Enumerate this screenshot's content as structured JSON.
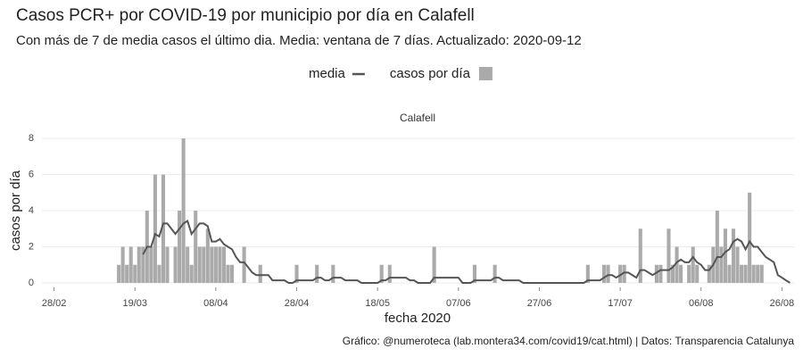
{
  "chart_data": {
    "type": "bar",
    "title": "Casos PCR+ por COVID-19 por municipio por día en Calafell",
    "subtitle": "Con más de 7 de media casos el último dia. Media: ventana de 7 días. Actualizado: 2020-09-12",
    "panel": "Calafell",
    "x_label": "fecha 2020",
    "y_label": "casos por día",
    "caption": "Gráfico: @numeroteca (lab.montera34.com/covid19/cat.html) | Datos: Transparencia Catalunya",
    "legend": "top",
    "grid": true,
    "xlim": [
      "25/02",
      "29/08"
    ],
    "xticks": [
      "28/02",
      "19/03",
      "08/04",
      "28/04",
      "18/05",
      "07/06",
      "27/06",
      "17/07",
      "06/08",
      "26/08"
    ],
    "ylim": [
      -0.25,
      8.5
    ],
    "yticks": [
      0,
      2,
      4,
      6,
      8
    ],
    "x": [
      "15/03",
      "16/03",
      "17/03",
      "18/03",
      "19/03",
      "20/03",
      "21/03",
      "22/03",
      "23/03",
      "24/03",
      "25/03",
      "26/03",
      "27/03",
      "28/03",
      "29/03",
      "30/03",
      "31/03",
      "01/04",
      "02/04",
      "03/04",
      "04/04",
      "05/04",
      "06/04",
      "07/04",
      "08/04",
      "09/04",
      "10/04",
      "11/04",
      "12/04",
      "13/04",
      "14/04",
      "15/04",
      "16/04",
      "17/04",
      "18/04",
      "19/04",
      "20/04",
      "21/04",
      "22/04",
      "23/04",
      "24/04",
      "25/04",
      "26/04",
      "27/04",
      "28/04",
      "29/04",
      "30/04",
      "01/05",
      "02/05",
      "03/05",
      "04/05",
      "05/05",
      "06/05",
      "07/05",
      "08/05",
      "09/05",
      "10/05",
      "11/05",
      "12/05",
      "13/05",
      "14/05",
      "15/05",
      "16/05",
      "17/05",
      "18/05",
      "19/05",
      "20/05",
      "21/05",
      "22/05",
      "23/05",
      "24/05",
      "25/05",
      "26/05",
      "27/05",
      "28/05",
      "29/05",
      "30/05",
      "31/05",
      "01/06",
      "02/06",
      "03/06",
      "04/06",
      "05/06",
      "06/06",
      "07/06",
      "08/06",
      "09/06",
      "10/06",
      "11/06",
      "12/06",
      "13/06",
      "14/06",
      "15/06",
      "16/06",
      "17/06",
      "18/06",
      "19/06",
      "20/06",
      "21/06",
      "22/06",
      "23/06",
      "24/06",
      "25/06",
      "26/06",
      "27/06",
      "28/06",
      "29/06",
      "30/06",
      "01/07",
      "02/07",
      "03/07",
      "04/07",
      "05/07",
      "06/07",
      "07/07",
      "08/07",
      "09/07",
      "10/07",
      "11/07",
      "12/07",
      "13/07",
      "14/07",
      "15/07",
      "16/07",
      "17/07",
      "18/07",
      "19/07",
      "20/07",
      "21/07",
      "22/07",
      "23/07",
      "24/07",
      "25/07",
      "26/07",
      "27/07",
      "28/07",
      "29/07",
      "30/07",
      "31/07",
      "01/08",
      "02/08",
      "03/08",
      "04/08",
      "05/08",
      "06/08",
      "07/08",
      "08/08",
      "09/08",
      "10/08",
      "11/08",
      "12/08",
      "13/08",
      "14/08",
      "15/08",
      "16/08",
      "17/08",
      "18/08",
      "19/08",
      "20/08",
      "21/08",
      "22/08",
      "23/08",
      "24/08",
      "25/08",
      "26/08",
      "27/08",
      "28/08"
    ],
    "series": [
      {
        "name": "media",
        "type": "line",
        "color": "#555555",
        "values": [
          null,
          null,
          null,
          null,
          null,
          null,
          1.57,
          2,
          2,
          2.71,
          2.57,
          3.29,
          3.29,
          3,
          2.71,
          3,
          3.29,
          3.43,
          2.71,
          3,
          3.29,
          3.29,
          3.14,
          2.29,
          2.29,
          2.43,
          2.14,
          2,
          1.86,
          1.43,
          1.14,
          1.14,
          0.86,
          0.57,
          0.43,
          0.43,
          0.43,
          0.43,
          0.14,
          0.14,
          0.14,
          0.14,
          0,
          0,
          0.14,
          0.14,
          0.14,
          0.14,
          0.14,
          0.29,
          0.29,
          0.14,
          0.14,
          0.29,
          0.29,
          0.29,
          0.14,
          0.14,
          0.14,
          0.14,
          0,
          0,
          0,
          0,
          0,
          0.14,
          0.14,
          0.29,
          0.29,
          0.29,
          0.29,
          0.29,
          0.14,
          0.14,
          0,
          0,
          0,
          0,
          0.29,
          0.29,
          0.29,
          0.29,
          0.29,
          0.29,
          0.29,
          0,
          0,
          0,
          0.14,
          0.14,
          0.14,
          0.14,
          0.14,
          0.29,
          0.29,
          0.14,
          0.14,
          0.14,
          0.14,
          0.14,
          0,
          0,
          0,
          0,
          0,
          0,
          0,
          0,
          0,
          0,
          0,
          0,
          0,
          0,
          0,
          0,
          0.14,
          0.14,
          0.14,
          0.14,
          0.29,
          0.43,
          0.43,
          0.29,
          0.43,
          0.57,
          0.57,
          0.43,
          0.29,
          0.71,
          0.71,
          0.57,
          0.43,
          0.57,
          0.71,
          0.71,
          0.71,
          0.86,
          1.14,
          1.29,
          1.14,
          1.14,
          1.43,
          1.14,
          1,
          0.71,
          0.71,
          1,
          1.43,
          1.43,
          1.71,
          1.86,
          2.29,
          2.43,
          2.29,
          1.86,
          2.29,
          2,
          2,
          1.71,
          1.43,
          1.29,
          1.14,
          0.43,
          0.29,
          0.14,
          0
        ]
      },
      {
        "name": "casos por día",
        "type": "bar",
        "color": "#aaaaaa",
        "values": [
          1,
          2,
          1,
          2,
          1,
          2,
          2,
          4,
          2,
          6,
          1,
          6,
          2,
          0,
          2,
          4,
          8,
          2,
          1,
          4,
          2,
          2,
          3,
          2,
          2,
          2,
          2,
          1,
          1,
          0,
          0,
          2,
          0,
          0,
          0,
          1,
          0,
          0,
          0,
          0,
          0,
          0,
          0,
          0,
          1,
          0,
          0,
          0,
          0,
          1,
          0,
          0,
          0,
          1,
          0,
          0,
          0,
          0,
          0,
          0,
          0,
          0,
          0,
          0,
          0,
          1,
          0,
          1,
          0,
          0,
          0,
          0,
          0,
          0,
          0,
          0,
          0,
          0,
          2,
          0,
          0,
          0,
          0,
          0,
          0,
          0,
          0,
          0,
          1,
          0,
          0,
          0,
          0,
          1,
          0,
          0,
          0,
          0,
          0,
          0,
          0,
          0,
          0,
          0,
          0,
          0,
          0,
          0,
          0,
          0,
          0,
          0,
          0,
          0,
          0,
          0,
          1,
          0,
          0,
          0,
          1,
          1,
          0,
          0,
          1,
          1,
          0,
          0,
          0,
          3,
          0,
          0,
          0,
          1,
          1,
          0,
          3,
          1,
          2,
          1,
          0,
          1,
          2,
          1,
          0,
          0,
          1,
          2,
          4,
          2,
          3,
          1,
          3,
          2,
          1,
          1,
          5,
          1,
          1,
          1,
          0,
          0,
          0,
          0,
          0,
          0,
          0
        ]
      }
    ]
  }
}
